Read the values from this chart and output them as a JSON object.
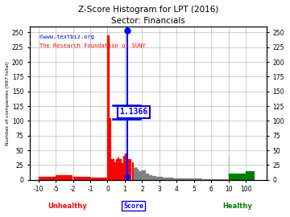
{
  "title": "Z-Score Histogram for LPT (2016)",
  "subtitle": "Sector: Financials",
  "xlabel_score": "Score",
  "ylabel_left": "Number of companies (997 total)",
  "watermark1": "©www.textbiz.org",
  "watermark2": "The Research Foundation of SUNY",
  "lpt_score": 1.1366,
  "lpt_score_label": "1.1366",
  "ylim": [
    0,
    260
  ],
  "background_color": "#ffffff",
  "grid_color": "#aaaaaa",
  "xtick_labels": [
    "-10",
    "-5",
    "-2",
    "-1",
    "0",
    "1",
    "2",
    "3",
    "4",
    "5",
    "6",
    "10",
    "100"
  ],
  "ytick_positions": [
    0,
    25,
    50,
    75,
    100,
    125,
    150,
    175,
    200,
    225,
    250
  ],
  "bar_data": {
    "left_edges": [
      -12,
      -5,
      -2,
      -1,
      0,
      0.1,
      0.2,
      0.3,
      0.4,
      0.5,
      0.6,
      0.7,
      0.8,
      0.9,
      1.0,
      1.1,
      1.2,
      1.3,
      1.4,
      1.5,
      1.6,
      1.7,
      1.8,
      1.9,
      2.0,
      2.2,
      2.4,
      2.6,
      2.8,
      3.0,
      3.2,
      3.4,
      3.6,
      3.8,
      4.0,
      4.5,
      5.0,
      5.5,
      6.0,
      10.0,
      10.5,
      100.0
    ],
    "heights": [
      5,
      8,
      5,
      4,
      245,
      105,
      35,
      35,
      30,
      35,
      38,
      35,
      28,
      40,
      45,
      38,
      35,
      35,
      30,
      20,
      22,
      18,
      15,
      14,
      16,
      10,
      8,
      6,
      5,
      5,
      4,
      3,
      3,
      2,
      2,
      2,
      2,
      1,
      1,
      40,
      10,
      15
    ],
    "colors": [
      "red",
      "red",
      "red",
      "red",
      "red",
      "red",
      "red",
      "red",
      "red",
      "red",
      "red",
      "red",
      "red",
      "red",
      "red",
      "red",
      "red",
      "red",
      "red",
      "gray",
      "gray",
      "gray",
      "gray",
      "gray",
      "gray",
      "gray",
      "gray",
      "gray",
      "gray",
      "gray",
      "gray",
      "gray",
      "gray",
      "gray",
      "gray",
      "gray",
      "gray",
      "gray",
      "gray",
      "green",
      "green",
      "green"
    ]
  },
  "custom_x_map": {
    "values": [
      -12,
      -10,
      -5,
      -2,
      -1,
      0,
      1,
      2,
      3,
      4,
      5,
      6,
      10,
      100,
      101
    ],
    "positions": [
      0,
      1,
      2,
      3,
      4,
      5,
      6,
      7,
      8,
      9,
      10,
      11,
      12,
      13,
      14
    ]
  }
}
